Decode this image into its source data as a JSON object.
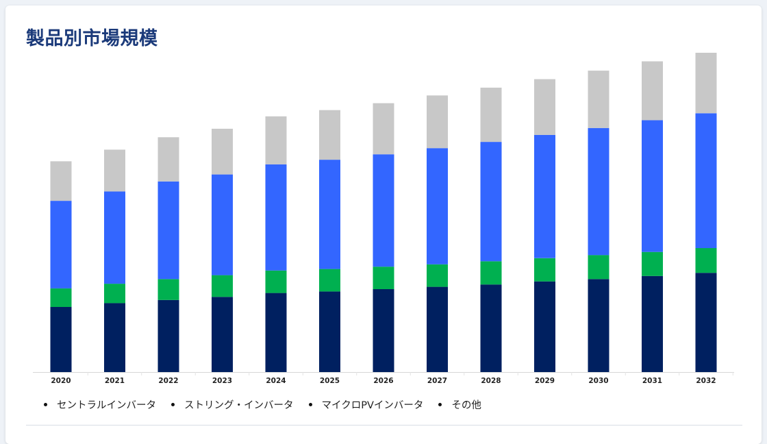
{
  "page": {
    "title": "製品別市場規模"
  },
  "colors": {
    "central": "#002060",
    "string": "#00b050",
    "micro": "#3366ff",
    "other": "#c8c8c8",
    "title": "#1b3a7a"
  },
  "chart_data": {
    "type": "bar",
    "stacked": true,
    "title": "製品別市場規模",
    "xlabel": "",
    "ylabel": "",
    "ylim": [
      0,
      420
    ],
    "grid": false,
    "legend_position": "bottom-left",
    "categories": [
      "2020",
      "2021",
      "2022",
      "2023",
      "2024",
      "2025",
      "2026",
      "2027",
      "2028",
      "2029",
      "2030",
      "2031",
      "2032"
    ],
    "series": [
      {
        "name": "セントラルインバータ",
        "color": "#002060",
        "values": [
          84,
          89,
          93,
          97,
          102,
          104,
          107,
          110,
          113,
          117,
          120,
          124,
          128
        ]
      },
      {
        "name": "ストリング・インバータ",
        "color": "#00b050",
        "values": [
          24,
          25,
          27,
          28,
          29,
          29,
          29,
          29,
          30,
          30,
          31,
          31,
          32
        ]
      },
      {
        "name": "マイクロPVインバータ",
        "color": "#3366ff",
        "values": [
          113,
          119,
          126,
          130,
          137,
          141,
          145,
          150,
          154,
          159,
          164,
          170,
          174
        ]
      },
      {
        "name": "その他",
        "color": "#c8c8c8",
        "values": [
          51,
          54,
          57,
          59,
          62,
          64,
          66,
          68,
          70,
          72,
          74,
          76,
          78
        ]
      }
    ]
  }
}
